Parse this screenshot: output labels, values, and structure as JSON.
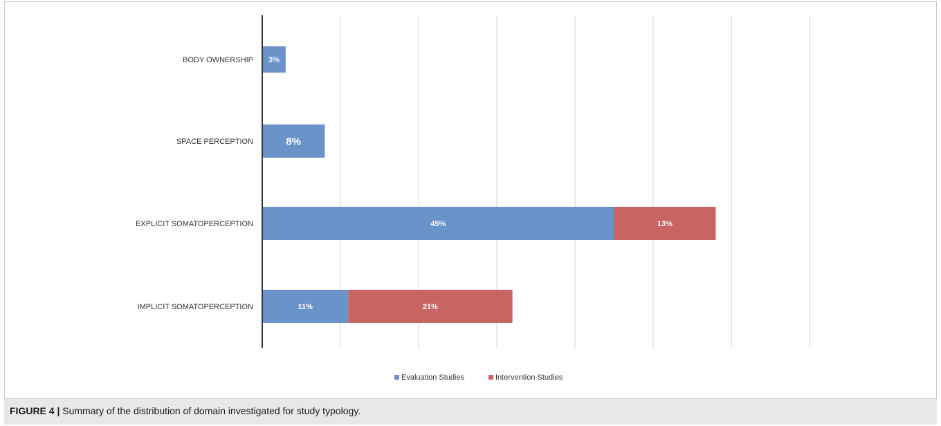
{
  "chart_data": {
    "type": "bar",
    "orientation": "horizontal",
    "stacked": true,
    "categories": [
      "BODY OWNERSHIP",
      "SPACE PERCEPTION",
      "EXPLICIT SOMATOPERCEPTION",
      "IMPLICIT SOMATOPERCEPTION"
    ],
    "series": [
      {
        "name": "Evaluation Studies",
        "values": [
          3,
          8,
          45,
          11
        ],
        "labels": [
          "3%",
          "8%",
          "45%",
          "11%"
        ],
        "color": "#6a93c9"
      },
      {
        "name": "Intervention Studies",
        "values": [
          null,
          null,
          13,
          21
        ],
        "labels": [
          "",
          "",
          "13%",
          "21%"
        ],
        "color": "#c96462"
      }
    ],
    "xlim": [
      0,
      70
    ],
    "grid": true,
    "tick_labels_shown": false,
    "legend_position": "bottom-center"
  },
  "caption": {
    "label": "FIGURE 4 |",
    "text": "Summary of the distribution of domain investigated for study typology."
  }
}
